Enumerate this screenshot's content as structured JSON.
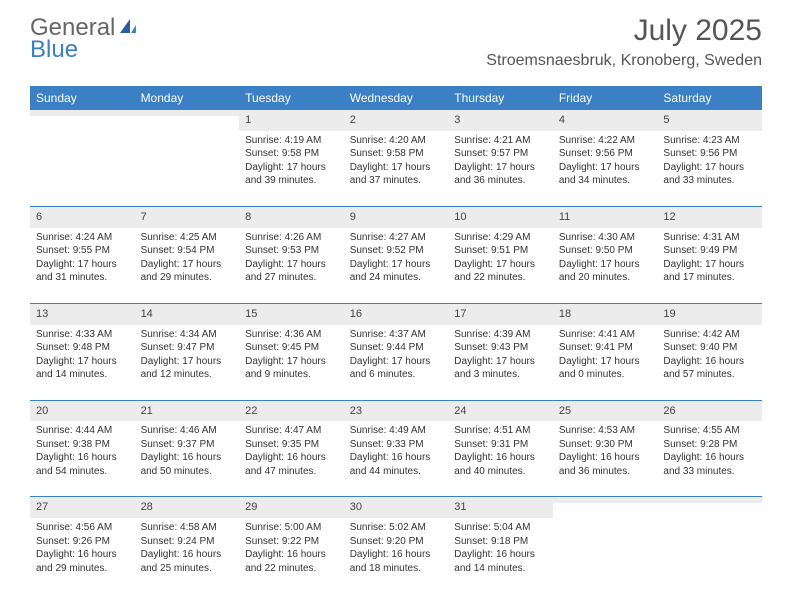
{
  "logo": {
    "part1": "General",
    "part2": "Blue"
  },
  "title": "July 2025",
  "location": "Stroemsnaesbruk, Kronoberg, Sweden",
  "colors": {
    "header_bg": "#3b7fc4",
    "header_fg": "#ffffff",
    "date_bg": "#ececec",
    "rule": "#3b7fc4",
    "text": "#333333"
  },
  "day_names": [
    "Sunday",
    "Monday",
    "Tuesday",
    "Wednesday",
    "Thursday",
    "Friday",
    "Saturday"
  ],
  "weeks": [
    [
      {
        "date": "",
        "lines": []
      },
      {
        "date": "",
        "lines": []
      },
      {
        "date": "1",
        "lines": [
          "Sunrise: 4:19 AM",
          "Sunset: 9:58 PM",
          "Daylight: 17 hours and 39 minutes."
        ]
      },
      {
        "date": "2",
        "lines": [
          "Sunrise: 4:20 AM",
          "Sunset: 9:58 PM",
          "Daylight: 17 hours and 37 minutes."
        ]
      },
      {
        "date": "3",
        "lines": [
          "Sunrise: 4:21 AM",
          "Sunset: 9:57 PM",
          "Daylight: 17 hours and 36 minutes."
        ]
      },
      {
        "date": "4",
        "lines": [
          "Sunrise: 4:22 AM",
          "Sunset: 9:56 PM",
          "Daylight: 17 hours and 34 minutes."
        ]
      },
      {
        "date": "5",
        "lines": [
          "Sunrise: 4:23 AM",
          "Sunset: 9:56 PM",
          "Daylight: 17 hours and 33 minutes."
        ]
      }
    ],
    [
      {
        "date": "6",
        "lines": [
          "Sunrise: 4:24 AM",
          "Sunset: 9:55 PM",
          "Daylight: 17 hours and 31 minutes."
        ]
      },
      {
        "date": "7",
        "lines": [
          "Sunrise: 4:25 AM",
          "Sunset: 9:54 PM",
          "Daylight: 17 hours and 29 minutes."
        ]
      },
      {
        "date": "8",
        "lines": [
          "Sunrise: 4:26 AM",
          "Sunset: 9:53 PM",
          "Daylight: 17 hours and 27 minutes."
        ]
      },
      {
        "date": "9",
        "lines": [
          "Sunrise: 4:27 AM",
          "Sunset: 9:52 PM",
          "Daylight: 17 hours and 24 minutes."
        ]
      },
      {
        "date": "10",
        "lines": [
          "Sunrise: 4:29 AM",
          "Sunset: 9:51 PM",
          "Daylight: 17 hours and 22 minutes."
        ]
      },
      {
        "date": "11",
        "lines": [
          "Sunrise: 4:30 AM",
          "Sunset: 9:50 PM",
          "Daylight: 17 hours and 20 minutes."
        ]
      },
      {
        "date": "12",
        "lines": [
          "Sunrise: 4:31 AM",
          "Sunset: 9:49 PM",
          "Daylight: 17 hours and 17 minutes."
        ]
      }
    ],
    [
      {
        "date": "13",
        "lines": [
          "Sunrise: 4:33 AM",
          "Sunset: 9:48 PM",
          "Daylight: 17 hours and 14 minutes."
        ]
      },
      {
        "date": "14",
        "lines": [
          "Sunrise: 4:34 AM",
          "Sunset: 9:47 PM",
          "Daylight: 17 hours and 12 minutes."
        ]
      },
      {
        "date": "15",
        "lines": [
          "Sunrise: 4:36 AM",
          "Sunset: 9:45 PM",
          "Daylight: 17 hours and 9 minutes."
        ]
      },
      {
        "date": "16",
        "lines": [
          "Sunrise: 4:37 AM",
          "Sunset: 9:44 PM",
          "Daylight: 17 hours and 6 minutes."
        ]
      },
      {
        "date": "17",
        "lines": [
          "Sunrise: 4:39 AM",
          "Sunset: 9:43 PM",
          "Daylight: 17 hours and 3 minutes."
        ]
      },
      {
        "date": "18",
        "lines": [
          "Sunrise: 4:41 AM",
          "Sunset: 9:41 PM",
          "Daylight: 17 hours and 0 minutes."
        ]
      },
      {
        "date": "19",
        "lines": [
          "Sunrise: 4:42 AM",
          "Sunset: 9:40 PM",
          "Daylight: 16 hours and 57 minutes."
        ]
      }
    ],
    [
      {
        "date": "20",
        "lines": [
          "Sunrise: 4:44 AM",
          "Sunset: 9:38 PM",
          "Daylight: 16 hours and 54 minutes."
        ]
      },
      {
        "date": "21",
        "lines": [
          "Sunrise: 4:46 AM",
          "Sunset: 9:37 PM",
          "Daylight: 16 hours and 50 minutes."
        ]
      },
      {
        "date": "22",
        "lines": [
          "Sunrise: 4:47 AM",
          "Sunset: 9:35 PM",
          "Daylight: 16 hours and 47 minutes."
        ]
      },
      {
        "date": "23",
        "lines": [
          "Sunrise: 4:49 AM",
          "Sunset: 9:33 PM",
          "Daylight: 16 hours and 44 minutes."
        ]
      },
      {
        "date": "24",
        "lines": [
          "Sunrise: 4:51 AM",
          "Sunset: 9:31 PM",
          "Daylight: 16 hours and 40 minutes."
        ]
      },
      {
        "date": "25",
        "lines": [
          "Sunrise: 4:53 AM",
          "Sunset: 9:30 PM",
          "Daylight: 16 hours and 36 minutes."
        ]
      },
      {
        "date": "26",
        "lines": [
          "Sunrise: 4:55 AM",
          "Sunset: 9:28 PM",
          "Daylight: 16 hours and 33 minutes."
        ]
      }
    ],
    [
      {
        "date": "27",
        "lines": [
          "Sunrise: 4:56 AM",
          "Sunset: 9:26 PM",
          "Daylight: 16 hours and 29 minutes."
        ]
      },
      {
        "date": "28",
        "lines": [
          "Sunrise: 4:58 AM",
          "Sunset: 9:24 PM",
          "Daylight: 16 hours and 25 minutes."
        ]
      },
      {
        "date": "29",
        "lines": [
          "Sunrise: 5:00 AM",
          "Sunset: 9:22 PM",
          "Daylight: 16 hours and 22 minutes."
        ]
      },
      {
        "date": "30",
        "lines": [
          "Sunrise: 5:02 AM",
          "Sunset: 9:20 PM",
          "Daylight: 16 hours and 18 minutes."
        ]
      },
      {
        "date": "31",
        "lines": [
          "Sunrise: 5:04 AM",
          "Sunset: 9:18 PM",
          "Daylight: 16 hours and 14 minutes."
        ]
      },
      {
        "date": "",
        "lines": []
      },
      {
        "date": "",
        "lines": []
      }
    ]
  ]
}
